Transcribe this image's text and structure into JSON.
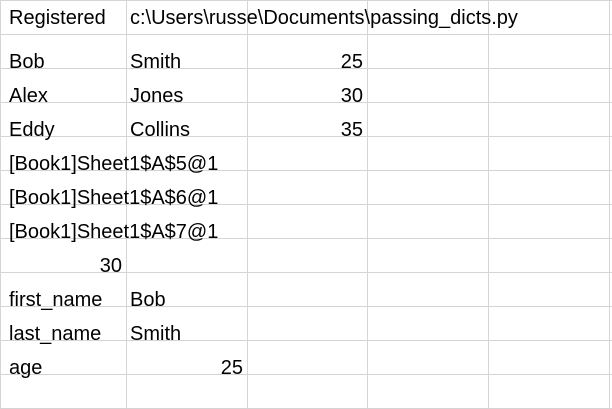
{
  "sheet": {
    "rows": [
      {
        "a": "Registered",
        "b": "c:\\Users\\russe\\Documents\\passing_dicts.py"
      },
      {
        "a": "Bob",
        "b": "Smith",
        "c": "25"
      },
      {
        "a": "Alex",
        "b": "Jones",
        "c": "30"
      },
      {
        "a": "Eddy",
        "b": "Collins",
        "c": "35"
      },
      {
        "a": "[Book1]Sheet1$A$5@1"
      },
      {
        "a": "[Book1]Sheet1$A$6@1"
      },
      {
        "a": "[Book1]Sheet1$A$7@1"
      },
      {
        "a": "30"
      },
      {
        "a": "first_name",
        "b": "Bob"
      },
      {
        "a": "last_name",
        "b": "Smith"
      },
      {
        "a": "age",
        "b": "25"
      }
    ]
  }
}
